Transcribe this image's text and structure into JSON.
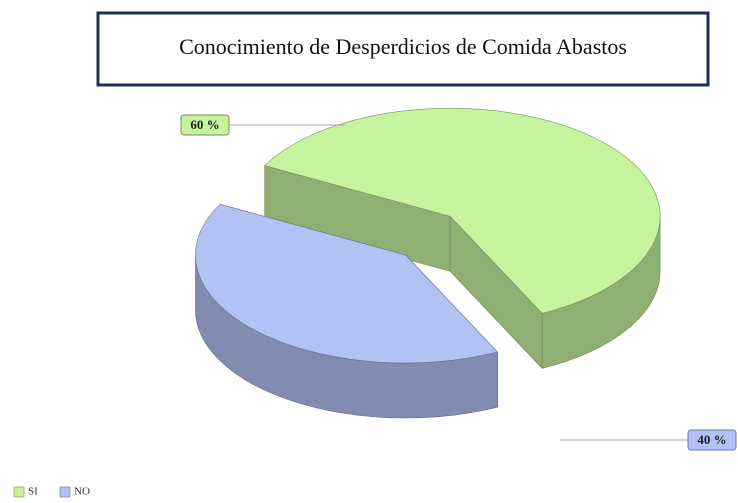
{
  "chart_data": {
    "type": "pie",
    "title": "Conocimiento  de Desperdicios de Comida  Abastos",
    "categories": [
      "SI",
      "NO"
    ],
    "values": [
      60,
      40
    ],
    "value_labels": [
      "60 %",
      "40 %"
    ],
    "colors": [
      "#c6f49e",
      "#b3c2f4"
    ]
  }
}
